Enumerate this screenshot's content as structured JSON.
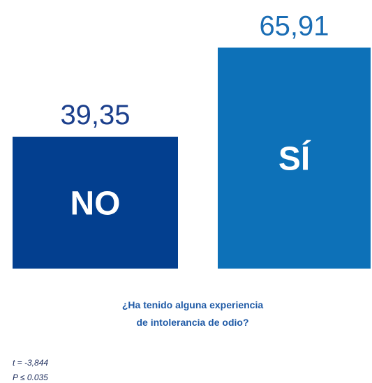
{
  "chart_data": {
    "type": "bar",
    "categories": [
      "NO",
      "SÍ"
    ],
    "series": [
      {
        "values": [
          39.35,
          65.91
        ],
        "value_labels": [
          "39,35",
          "65,91"
        ],
        "colors": [
          "#033f8f",
          "#0d71b8"
        ],
        "label_colors": [
          "#1b3f8c",
          "#1a6db4"
        ]
      }
    ],
    "xlabel": [
      "¿Ha tenido alguna experiencia",
      "de intolerancia de odio?"
    ],
    "annotations": [
      "t = -3,844",
      "P ≤ 0.035"
    ]
  }
}
